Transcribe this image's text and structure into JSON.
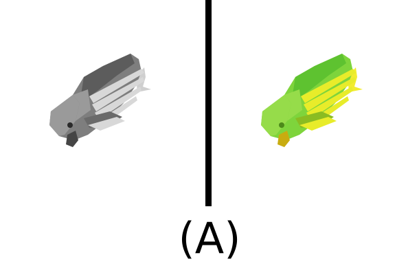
{
  "figure": {
    "caption": "(A)",
    "panels": [
      {
        "icon": "fish-icon",
        "palette": {
          "body_dark": "#5c5c5c",
          "body_mid": "#7e7e7e",
          "body_light": "#9a9a9a",
          "fins": "#d8d8d8",
          "fin_shadow": "#6a6a6a",
          "tail": "#cfcfcf",
          "eye": "#2a2a2a",
          "mouth": "#454545"
        }
      },
      {
        "icon": "fish-icon",
        "palette": {
          "body_dark": "#5ec230",
          "body_mid": "#7ed43c",
          "body_light": "#96dc4a",
          "fins": "#e8ec2a",
          "fin_shadow": "#8abc22",
          "tail": "#f2ec30",
          "eye": "#4c8a1a",
          "mouth": "#c8ac10"
        }
      }
    ],
    "divider_color": "#000000",
    "caption_color": "#000000"
  }
}
